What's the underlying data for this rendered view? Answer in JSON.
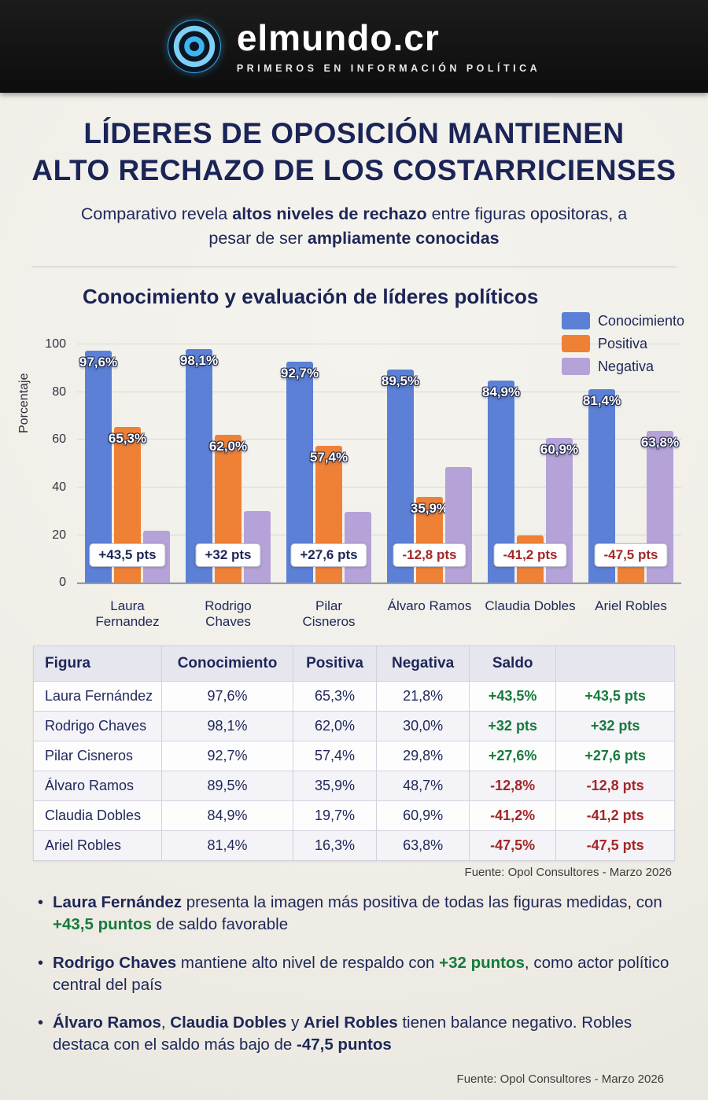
{
  "header": {
    "brand": "elmundo.cr",
    "tagline": "PRIMEROS EN INFORMACIÓN POLÍTICA"
  },
  "title": {
    "line1": "LÍDERES DE OPOSICIÓN MANTIENEN",
    "line2": "ALTO RECHAZO DE LOS COSTARRICIENSES"
  },
  "subtitle": {
    "part1": "Comparativo revela ",
    "bold1": "altos niveles de rechazo",
    "part2": " entre figuras opositoras, a pesar de ser ",
    "bold2": "ampliamente conocidas"
  },
  "chart_title": "Conocimiento y evaluación de líderes políticos",
  "chart_data": {
    "type": "bar",
    "title": "Conocimiento y evaluación de líderes políticos",
    "ylabel": "Porcentaje",
    "ylim": [
      0,
      107
    ],
    "yticks": [
      0,
      20,
      40,
      60,
      80,
      100
    ],
    "grid": true,
    "legend_position": "top-right",
    "categories": [
      "Laura\nFernandez",
      "Rodrigo\nChaves",
      "Pilar\nCisneros",
      "Álvaro Ramos",
      "Claudia Dobles",
      "Ariel Robles"
    ],
    "series": [
      {
        "name": "Conocimiento",
        "color": "#5b80d5",
        "values": [
          97.6,
          98.1,
          92.7,
          89.5,
          84.9,
          81.4
        ],
        "labels": [
          "97,6%",
          "98,1%",
          "92,7%",
          "89,5%",
          "84,9%",
          "81,4%"
        ]
      },
      {
        "name": "Positiva",
        "color": "#ee8135",
        "values": [
          65.3,
          62.0,
          57.4,
          35.9,
          19.7,
          16.3
        ],
        "labels": [
          "65,3%",
          "62,0%",
          "57,4%",
          "35,9%",
          "",
          ""
        ]
      },
      {
        "name": "Negativa",
        "color": "#b5a2d8",
        "values": [
          21.8,
          30.0,
          29.8,
          48.7,
          60.9,
          63.8
        ],
        "labels": [
          "",
          "",
          "",
          "",
          "60,9%",
          "63,8%"
        ]
      }
    ],
    "badges": [
      {
        "label": "+43,5 pts",
        "positive": true
      },
      {
        "label": "+32 pts",
        "positive": true
      },
      {
        "label": "+27,6 pts",
        "positive": true
      },
      {
        "label": "-12,8 pts",
        "positive": false
      },
      {
        "label": "-41,2 pts",
        "positive": false
      },
      {
        "label": "-47,5 pts",
        "positive": false
      }
    ]
  },
  "table": {
    "headers": [
      "Figura",
      "Conocimiento",
      "Positiva",
      "Negativa",
      "Saldo",
      ""
    ],
    "rows": [
      {
        "cells": [
          "Laura Fernández",
          "97,6%",
          "65,3%",
          "21,8%",
          "+43,5%",
          "+43,5 pts"
        ],
        "positive": true
      },
      {
        "cells": [
          "Rodrigo Chaves",
          "98,1%",
          "62,0%",
          "30,0%",
          "+32 pts",
          "+32 pts"
        ],
        "positive": true
      },
      {
        "cells": [
          "Pilar Cisneros",
          "92,7%",
          "57,4%",
          "29,8%",
          "+27,6%",
          "+27,6 pts"
        ],
        "positive": true
      },
      {
        "cells": [
          "Álvaro Ramos",
          "89,5%",
          "35,9%",
          "48,7%",
          "-12,8%",
          "-12,8 pts"
        ],
        "positive": false
      },
      {
        "cells": [
          "Claudia Dobles",
          "84,9%",
          "19,7%",
          "60,9%",
          "-41,2%",
          "-41,2 pts"
        ],
        "positive": false
      },
      {
        "cells": [
          "Ariel Robles",
          "81,4%",
          "16,3%",
          "63,8%",
          "-47,5%",
          "-47,5 pts"
        ],
        "positive": false
      }
    ]
  },
  "table_source": "Fuente: Opol Consultores - Marzo 2026",
  "bullets": [
    {
      "segments": [
        {
          "text": "Laura Fernández",
          "style": "bold"
        },
        {
          "text": " presenta la imagen más positiva de todas las figuras medidas, con ",
          "style": "normal"
        },
        {
          "text": "+43,5 puntos",
          "style": "green"
        },
        {
          "text": " de saldo favorable",
          "style": "normal"
        }
      ]
    },
    {
      "segments": [
        {
          "text": "Rodrigo Chaves",
          "style": "bold"
        },
        {
          "text": " mantiene alto nivel de respaldo con ",
          "style": "normal"
        },
        {
          "text": "+32 puntos",
          "style": "green"
        },
        {
          "text": ", como actor político central del país",
          "style": "normal"
        }
      ]
    },
    {
      "segments": [
        {
          "text": "Álvaro Ramos",
          "style": "bold"
        },
        {
          "text": ", ",
          "style": "normal"
        },
        {
          "text": "Claudia Dobles",
          "style": "bold"
        },
        {
          "text": " y ",
          "style": "normal"
        },
        {
          "text": "Ariel Robles",
          "style": "bold"
        },
        {
          "text": " tienen balance negativo. Robles destaca con el saldo más bajo de ",
          "style": "normal"
        },
        {
          "text": "-47,5 puntos",
          "style": "bold"
        }
      ]
    }
  ],
  "footer_source": "Fuente: Opol Consultores - Marzo 2026",
  "colors": {
    "navy": "#1b2456",
    "blue": "#5b80d5",
    "orange": "#ee8135",
    "purple": "#b5a2d8",
    "green": "#167a3c",
    "red": "#a32727",
    "paper": "#f2f0ea",
    "header_bg": "#141414"
  }
}
